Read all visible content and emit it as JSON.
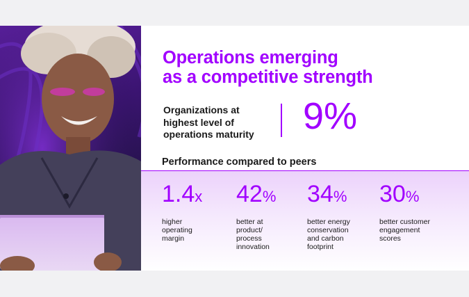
{
  "headline": [
    "Operations emerging",
    "as a competitive strength"
  ],
  "stat": {
    "label_lines": [
      "Organizations at",
      "highest level of",
      "operations maturity"
    ],
    "value": "9%"
  },
  "section_title": "Performance compared to peers",
  "metrics": [
    {
      "number": "1.4",
      "unit": "x",
      "lines": [
        "higher",
        "operating",
        "margin"
      ]
    },
    {
      "number": "42",
      "unit": "%",
      "lines": [
        "better at",
        "product/",
        "process",
        "innovation"
      ]
    },
    {
      "number": "34",
      "unit": "%",
      "lines": [
        "better energy",
        "conservation",
        "and carbon",
        "footprint"
      ]
    },
    {
      "number": "30",
      "unit": "%",
      "lines": [
        "better customer",
        "engagement",
        "scores"
      ]
    }
  ],
  "colors": {
    "accent": "#a100ff",
    "text": "#1a1a1a",
    "page_bg": "#f1f1f3"
  },
  "image": {
    "alt_description": "person smiling at a tablet in purple light"
  }
}
